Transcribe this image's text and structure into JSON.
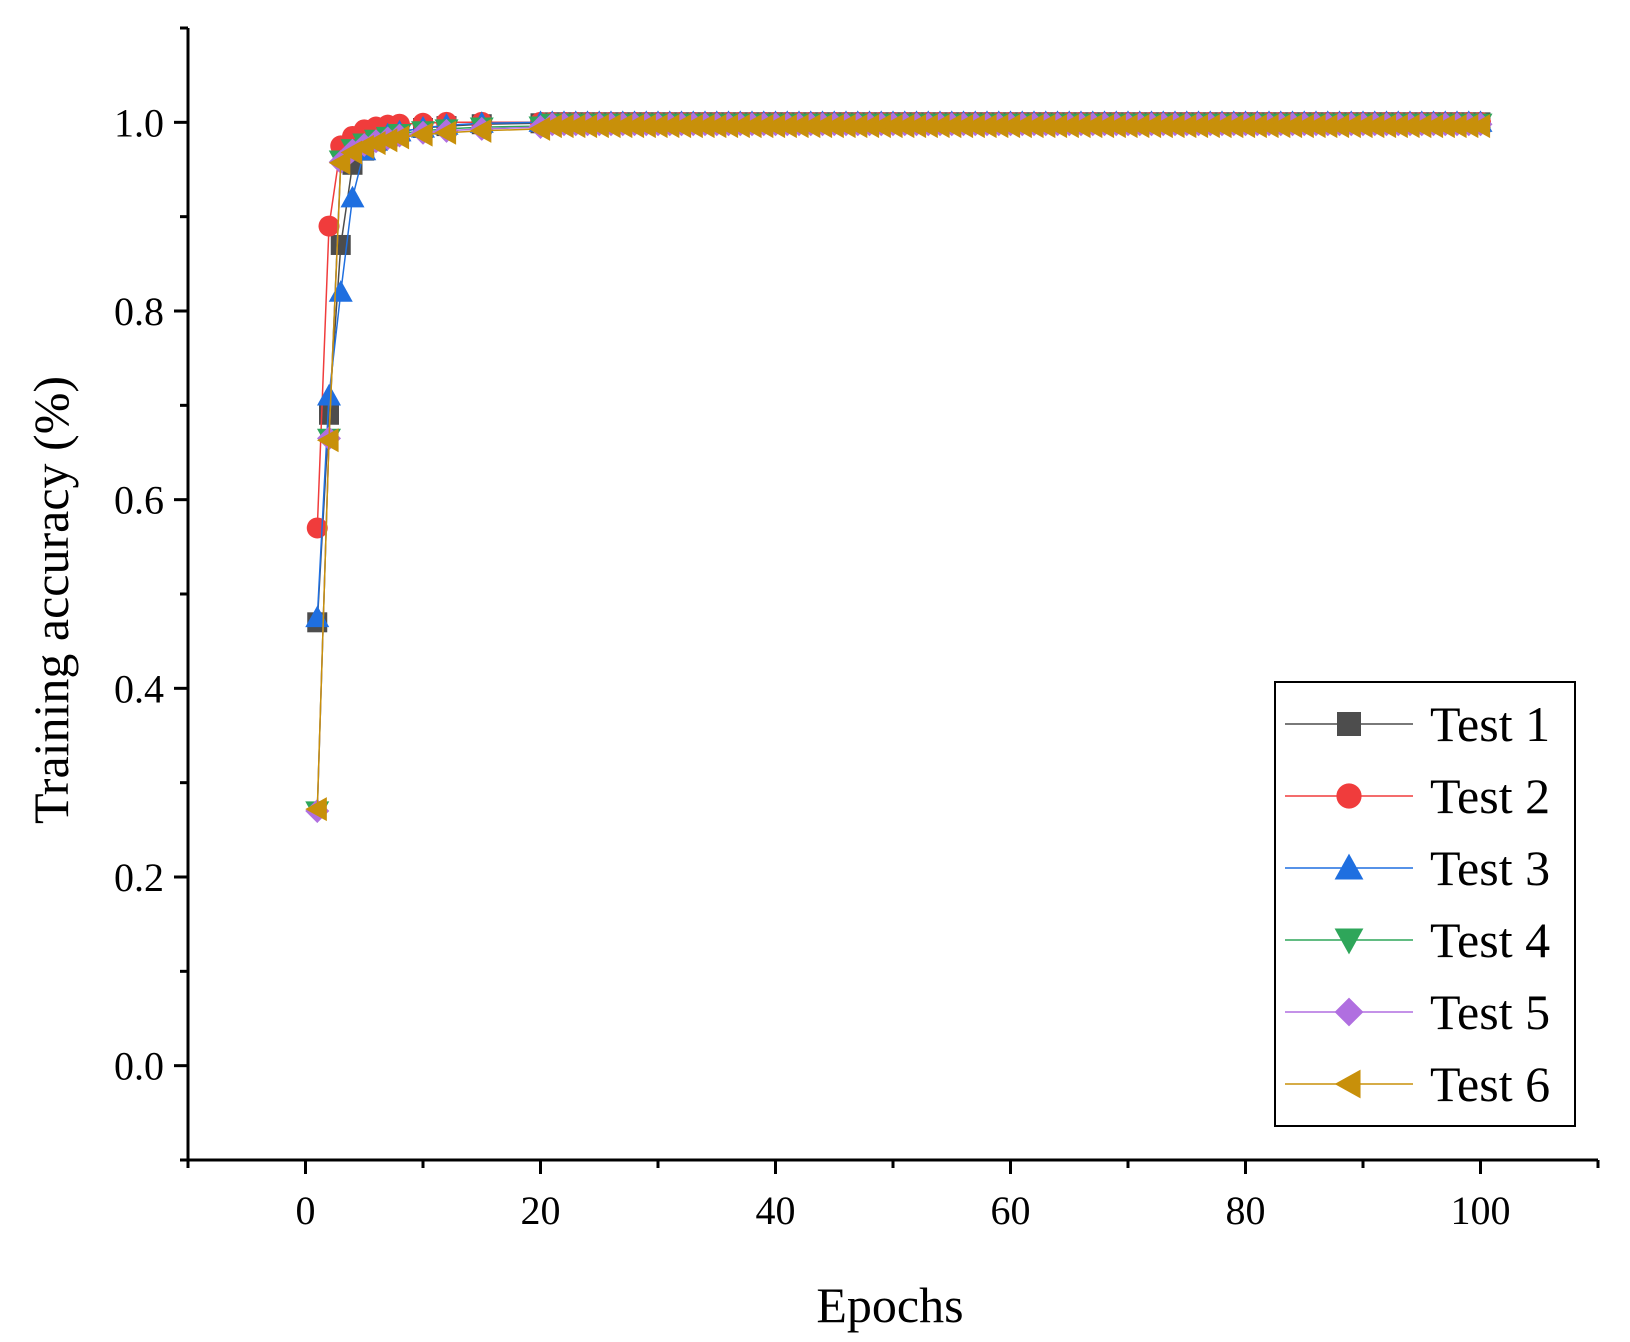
{
  "chart_data": {
    "type": "line",
    "title": "",
    "xlabel": "Epochs",
    "ylabel": "Training accuracy (%)",
    "xlim": [
      -10,
      110
    ],
    "ylim": [
      -0.1,
      1.1
    ],
    "xticks": [
      0,
      20,
      40,
      60,
      80,
      100
    ],
    "xtick_labels": [
      "0",
      "20",
      "40",
      "60",
      "80",
      "100"
    ],
    "yticks": [
      0.0,
      0.2,
      0.4,
      0.6,
      0.8,
      1.0
    ],
    "ytick_labels": [
      "0.0",
      "0.2",
      "0.4",
      "0.6",
      "0.8",
      "1.0"
    ],
    "grid": false,
    "legend_position": "bottom-right",
    "series": [
      {
        "name": "Test 1",
        "color": "#4d4d4d",
        "marker": "square",
        "head": [
          [
            1,
            0.47
          ],
          [
            2,
            0.69
          ],
          [
            3,
            0.87
          ],
          [
            4,
            0.955
          ],
          [
            5,
            0.97
          ],
          [
            6,
            0.98
          ],
          [
            7,
            0.985
          ],
          [
            8,
            0.99
          ],
          [
            10,
            0.994
          ],
          [
            12,
            0.996
          ],
          [
            15,
            0.998
          ],
          [
            20,
            0.999
          ]
        ],
        "tail_from": 21,
        "tail_to": 100,
        "tail_value": 1.0
      },
      {
        "name": "Test 2",
        "color": "#f03c3c",
        "marker": "circle",
        "head": [
          [
            1,
            0.57
          ],
          [
            2,
            0.89
          ],
          [
            3,
            0.975
          ],
          [
            4,
            0.985
          ],
          [
            5,
            0.992
          ],
          [
            6,
            0.995
          ],
          [
            7,
            0.997
          ],
          [
            8,
            0.998
          ],
          [
            10,
            0.999
          ],
          [
            12,
            1.0
          ],
          [
            15,
            1.0
          ],
          [
            20,
            1.0
          ]
        ],
        "tail_from": 21,
        "tail_to": 100,
        "tail_value": 1.0
      },
      {
        "name": "Test 3",
        "color": "#1f6fe0",
        "marker": "triangle-up",
        "head": [
          [
            1,
            0.475
          ],
          [
            2,
            0.71
          ],
          [
            3,
            0.82
          ],
          [
            4,
            0.92
          ],
          [
            5,
            0.97
          ],
          [
            6,
            0.98
          ],
          [
            7,
            0.987
          ],
          [
            8,
            0.99
          ],
          [
            10,
            0.994
          ],
          [
            12,
            0.997
          ],
          [
            15,
            0.999
          ],
          [
            20,
            1.0
          ]
        ],
        "tail_from": 21,
        "tail_to": 100,
        "tail_value": 1.0
      },
      {
        "name": "Test 4",
        "color": "#2ea65a",
        "marker": "triangle-down",
        "head": [
          [
            1,
            0.27
          ],
          [
            2,
            0.665
          ],
          [
            3,
            0.96
          ],
          [
            4,
            0.972
          ],
          [
            5,
            0.978
          ],
          [
            6,
            0.982
          ],
          [
            7,
            0.985
          ],
          [
            8,
            0.988
          ],
          [
            10,
            0.991
          ],
          [
            12,
            0.993
          ],
          [
            15,
            0.995
          ],
          [
            20,
            0.996
          ]
        ],
        "tail_from": 21,
        "tail_to": 100,
        "tail_value": 0.999
      },
      {
        "name": "Test 5",
        "color": "#b06fe0",
        "marker": "diamond",
        "head": [
          [
            1,
            0.27
          ],
          [
            2,
            0.665
          ],
          [
            3,
            0.958
          ],
          [
            4,
            0.97
          ],
          [
            5,
            0.976
          ],
          [
            6,
            0.98
          ],
          [
            7,
            0.983
          ],
          [
            8,
            0.986
          ],
          [
            10,
            0.989
          ],
          [
            12,
            0.991
          ],
          [
            15,
            0.993
          ],
          [
            20,
            0.995
          ]
        ],
        "tail_from": 21,
        "tail_to": 100,
        "tail_value": 0.998
      },
      {
        "name": "Test 6",
        "color": "#c8900a",
        "marker": "triangle-left",
        "head": [
          [
            1,
            0.272
          ],
          [
            2,
            0.663
          ],
          [
            3,
            0.957
          ],
          [
            4,
            0.968
          ],
          [
            5,
            0.974
          ],
          [
            6,
            0.978
          ],
          [
            7,
            0.981
          ],
          [
            8,
            0.984
          ],
          [
            10,
            0.987
          ],
          [
            12,
            0.989
          ],
          [
            15,
            0.991
          ],
          [
            20,
            0.993
          ]
        ],
        "tail_from": 21,
        "tail_to": 100,
        "tail_value": 0.996
      }
    ]
  }
}
